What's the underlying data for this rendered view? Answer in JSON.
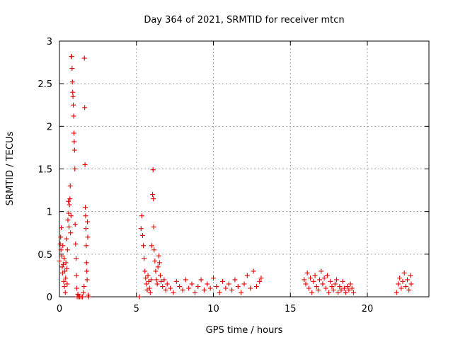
{
  "chart_data": {
    "type": "scatter",
    "title": "Day 364 of 2021, SRMTID for receiver mtcn",
    "xlabel": "GPS time / hours",
    "ylabel": "SRMTID / TECUs",
    "xlim": [
      0,
      24
    ],
    "ylim": [
      0,
      3
    ],
    "xticks": [
      0,
      5,
      10,
      15,
      20
    ],
    "xtick_labels": [
      "0",
      "5",
      "10",
      "15",
      "20"
    ],
    "yticks": [
      0,
      0.5,
      1,
      1.5,
      2,
      2.5,
      3
    ],
    "ytick_labels": [
      "0",
      "0.5",
      "1",
      "1.5",
      "2",
      "2.5",
      "3"
    ],
    "grid": true,
    "marker": "+",
    "color": "#e00000",
    "series": [
      {
        "name": "SRMTID",
        "points": [
          [
            0.0,
            0.42
          ],
          [
            0.05,
            0.62
          ],
          [
            0.08,
            0.7
          ],
          [
            0.1,
            0.55
          ],
          [
            0.12,
            0.81
          ],
          [
            0.15,
            0.48
          ],
          [
            0.18,
            0.35
          ],
          [
            0.2,
            0.28
          ],
          [
            0.22,
            0.6
          ],
          [
            0.25,
            0.38
          ],
          [
            0.28,
            0.18
          ],
          [
            0.3,
            0.45
          ],
          [
            0.32,
            0.12
          ],
          [
            0.35,
            0.3
          ],
          [
            0.38,
            0.05
          ],
          [
            0.4,
            0.22
          ],
          [
            0.42,
            0.4
          ],
          [
            0.45,
            0.68
          ],
          [
            0.48,
            0.33
          ],
          [
            0.5,
            0.15
          ],
          [
            0.52,
            0.55
          ],
          [
            0.55,
            0.9
          ],
          [
            0.58,
            1.12
          ],
          [
            0.6,
            0.98
          ],
          [
            0.62,
            0.82
          ],
          [
            0.65,
            1.08
          ],
          [
            0.68,
            1.15
          ],
          [
            0.7,
            1.3
          ],
          [
            0.72,
            0.75
          ],
          [
            0.75,
            0.95
          ],
          [
            0.78,
            2.82
          ],
          [
            0.8,
            2.82
          ],
          [
            0.82,
            2.68
          ],
          [
            0.84,
            2.52
          ],
          [
            0.86,
            2.4
          ],
          [
            0.88,
            2.35
          ],
          [
            0.9,
            2.25
          ],
          [
            0.92,
            2.12
          ],
          [
            0.94,
            1.92
          ],
          [
            0.96,
            1.82
          ],
          [
            0.98,
            1.72
          ],
          [
            1.0,
            1.5
          ],
          [
            1.02,
            0.85
          ],
          [
            1.05,
            0.62
          ],
          [
            1.08,
            0.45
          ],
          [
            1.1,
            0.25
          ],
          [
            1.12,
            0.1
          ],
          [
            1.15,
            0.0
          ],
          [
            1.2,
            0.03
          ],
          [
            1.25,
            0.0
          ],
          [
            1.3,
            0.0
          ],
          [
            1.4,
            0.0
          ],
          [
            1.5,
            0.0
          ],
          [
            1.55,
            0.05
          ],
          [
            1.6,
            0.12
          ],
          [
            1.62,
            2.8
          ],
          [
            1.64,
            2.22
          ],
          [
            1.66,
            1.55
          ],
          [
            1.68,
            1.05
          ],
          [
            1.7,
            0.95
          ],
          [
            1.72,
            0.8
          ],
          [
            1.74,
            0.6
          ],
          [
            1.76,
            0.4
          ],
          [
            1.78,
            0.3
          ],
          [
            1.8,
            0.2
          ],
          [
            1.82,
            0.88
          ],
          [
            1.84,
            0.7
          ],
          [
            1.86,
            0.02
          ],
          [
            1.9,
            0.0
          ],
          [
            5.2,
            0.0
          ],
          [
            5.3,
            0.8
          ],
          [
            5.35,
            0.95
          ],
          [
            5.4,
            0.72
          ],
          [
            5.45,
            0.6
          ],
          [
            5.5,
            0.45
          ],
          [
            5.55,
            0.3
          ],
          [
            5.6,
            0.22
          ],
          [
            5.65,
            0.15
          ],
          [
            5.7,
            0.08
          ],
          [
            5.75,
            0.25
          ],
          [
            5.8,
            0.18
          ],
          [
            5.85,
            0.1
          ],
          [
            5.9,
            0.05
          ],
          [
            5.95,
            0.2
          ],
          [
            6.0,
            0.6
          ],
          [
            6.05,
            1.2
          ],
          [
            6.08,
            1.49
          ],
          [
            6.1,
            1.15
          ],
          [
            6.12,
            0.82
          ],
          [
            6.15,
            0.55
          ],
          [
            6.2,
            0.42
          ],
          [
            6.25,
            0.3
          ],
          [
            6.3,
            0.2
          ],
          [
            6.35,
            0.15
          ],
          [
            6.4,
            0.35
          ],
          [
            6.45,
            0.48
          ],
          [
            6.5,
            0.4
          ],
          [
            6.55,
            0.25
          ],
          [
            6.6,
            0.18
          ],
          [
            6.7,
            0.12
          ],
          [
            6.8,
            0.2
          ],
          [
            6.9,
            0.08
          ],
          [
            7.0,
            0.15
          ],
          [
            7.2,
            0.1
          ],
          [
            7.4,
            0.05
          ],
          [
            7.6,
            0.18
          ],
          [
            7.8,
            0.12
          ],
          [
            8.0,
            0.08
          ],
          [
            8.2,
            0.2
          ],
          [
            8.4,
            0.1
          ],
          [
            8.6,
            0.15
          ],
          [
            8.8,
            0.05
          ],
          [
            9.0,
            0.12
          ],
          [
            9.2,
            0.2
          ],
          [
            9.4,
            0.08
          ],
          [
            9.6,
            0.15
          ],
          [
            9.8,
            0.1
          ],
          [
            10.0,
            0.22
          ],
          [
            10.2,
            0.12
          ],
          [
            10.4,
            0.05
          ],
          [
            10.6,
            0.18
          ],
          [
            10.8,
            0.1
          ],
          [
            11.0,
            0.15
          ],
          [
            11.2,
            0.08
          ],
          [
            11.4,
            0.2
          ],
          [
            11.6,
            0.12
          ],
          [
            11.8,
            0.05
          ],
          [
            12.0,
            0.15
          ],
          [
            12.2,
            0.25
          ],
          [
            12.4,
            0.1
          ],
          [
            12.6,
            0.3
          ],
          [
            12.8,
            0.12
          ],
          [
            13.0,
            0.18
          ],
          [
            13.1,
            0.22
          ],
          [
            15.9,
            0.2
          ],
          [
            16.0,
            0.15
          ],
          [
            16.1,
            0.28
          ],
          [
            16.2,
            0.1
          ],
          [
            16.3,
            0.22
          ],
          [
            16.4,
            0.05
          ],
          [
            16.5,
            0.18
          ],
          [
            16.6,
            0.25
          ],
          [
            16.7,
            0.12
          ],
          [
            16.8,
            0.08
          ],
          [
            16.9,
            0.2
          ],
          [
            17.0,
            0.3
          ],
          [
            17.1,
            0.15
          ],
          [
            17.2,
            0.22
          ],
          [
            17.3,
            0.1
          ],
          [
            17.4,
            0.25
          ],
          [
            17.5,
            0.05
          ],
          [
            17.6,
            0.18
          ],
          [
            17.7,
            0.12
          ],
          [
            17.8,
            0.08
          ],
          [
            17.9,
            0.15
          ],
          [
            18.0,
            0.2
          ],
          [
            18.1,
            0.05
          ],
          [
            18.2,
            0.12
          ],
          [
            18.3,
            0.08
          ],
          [
            18.4,
            0.18
          ],
          [
            18.5,
            0.1
          ],
          [
            18.6,
            0.05
          ],
          [
            18.7,
            0.12
          ],
          [
            18.8,
            0.08
          ],
          [
            18.9,
            0.15
          ],
          [
            19.0,
            0.1
          ],
          [
            19.1,
            0.05
          ],
          [
            21.9,
            0.05
          ],
          [
            22.0,
            0.15
          ],
          [
            22.1,
            0.22
          ],
          [
            22.2,
            0.1
          ],
          [
            22.3,
            0.18
          ],
          [
            22.4,
            0.28
          ],
          [
            22.5,
            0.12
          ],
          [
            22.6,
            0.2
          ],
          [
            22.7,
            0.08
          ],
          [
            22.8,
            0.25
          ],
          [
            22.85,
            0.15
          ]
        ]
      }
    ]
  }
}
